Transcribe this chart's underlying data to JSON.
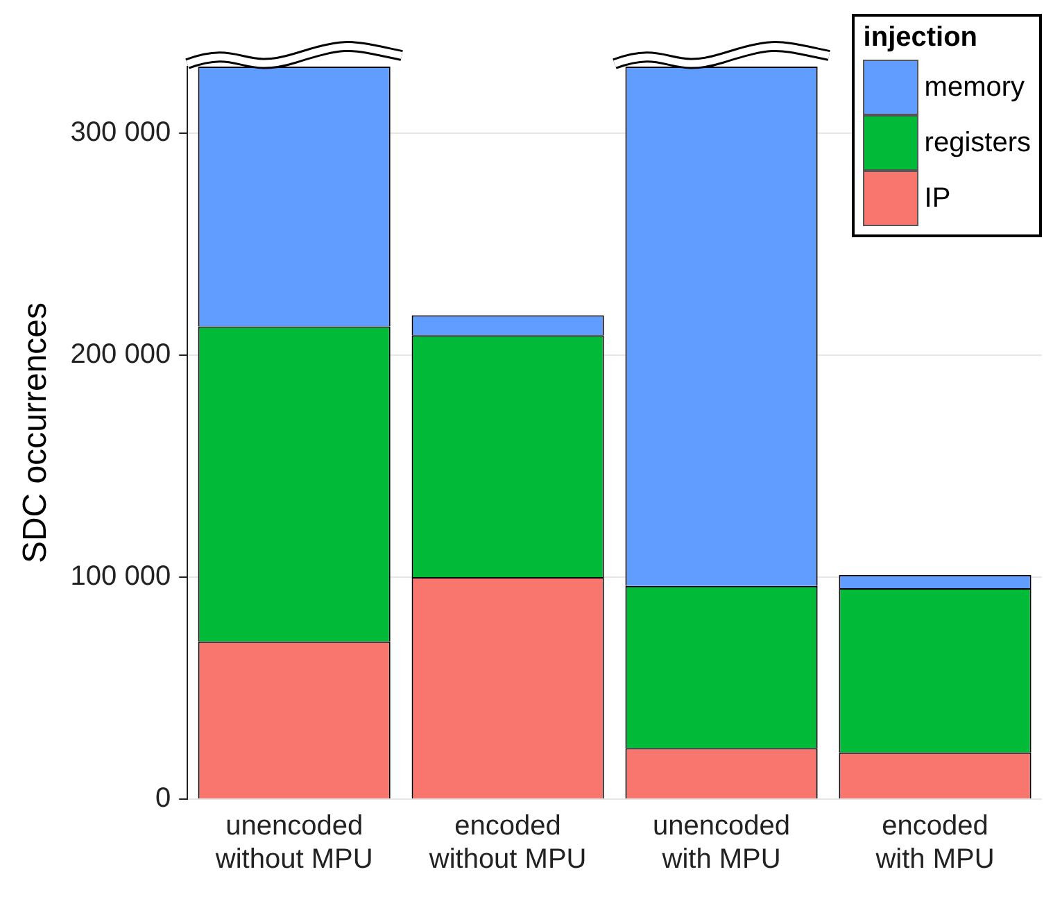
{
  "chart_data": {
    "type": "bar",
    "stacked": true,
    "ylabel": "SDC occurrences",
    "legend_title": "injection",
    "legend": "top right",
    "grid": "y",
    "categories": [
      "unencoded without MPU",
      "encoded without MPU",
      "unencoded with MPU",
      "encoded with MPU"
    ],
    "series": [
      {
        "name": "IP",
        "color": "#f8766d",
        "values": [
          71000,
          100000,
          23000,
          21000
        ]
      },
      {
        "name": "registers",
        "color": "#00ba38",
        "values": [
          142000,
          109000,
          73000,
          74000
        ]
      },
      {
        "name": "memory",
        "color": "#619cff",
        "values": [
          117000,
          9000,
          234000,
          6000
        ]
      }
    ],
    "ylim": [
      0,
      330000
    ],
    "yticks": [
      {
        "value": 0,
        "label": "0"
      },
      {
        "value": 100000,
        "label": "100 000"
      },
      {
        "value": 200000,
        "label": "200 000"
      },
      {
        "value": 300000,
        "label": "300 000"
      }
    ]
  }
}
